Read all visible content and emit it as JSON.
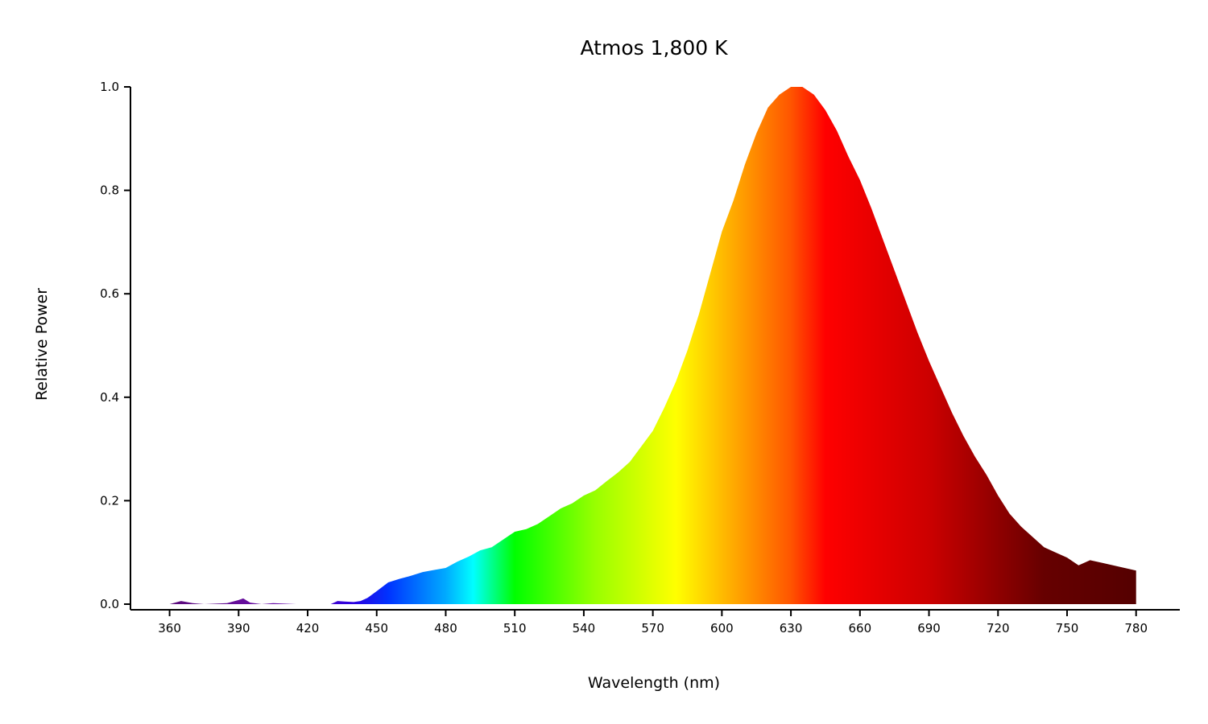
{
  "chart_data": {
    "type": "area",
    "title": "Atmos 1,800 K",
    "xlabel": "Wavelength (nm)",
    "ylabel": "Relative Power",
    "xlim": [
      343,
      799
    ],
    "ylim": [
      0,
      1.0
    ],
    "xticks": [
      360,
      390,
      420,
      450,
      480,
      510,
      540,
      570,
      600,
      630,
      660,
      690,
      720,
      750,
      780
    ],
    "yticks": [
      0.0,
      0.2,
      0.4,
      0.6,
      0.8,
      1.0
    ],
    "ytick_labels": [
      "0.0",
      "0.2",
      "0.4",
      "0.6",
      "0.8",
      "1.0"
    ],
    "grid": false,
    "fill": "visible-spectrum gradient",
    "series": [
      {
        "x": [
          360,
          365,
          370,
          375,
          380,
          385,
          390,
          392,
          395,
          400,
          405,
          410,
          415,
          420,
          425,
          430,
          433,
          436,
          440,
          443,
          446,
          450,
          455,
          460,
          465,
          470,
          475,
          480,
          485,
          490,
          495,
          500,
          505,
          510,
          515,
          520,
          525,
          530,
          535,
          540,
          545,
          550,
          555,
          560,
          565,
          570,
          575,
          580,
          585,
          590,
          595,
          600,
          605,
          610,
          615,
          620,
          625,
          630,
          635,
          640,
          645,
          650,
          655,
          660,
          665,
          670,
          675,
          680,
          685,
          690,
          695,
          700,
          705,
          710,
          715,
          720,
          725,
          730,
          735,
          740,
          745,
          750,
          755,
          760,
          765,
          770,
          775,
          780
        ],
        "y": [
          0.0,
          0.006,
          0.002,
          0.0,
          0.001,
          0.002,
          0.008,
          0.011,
          0.003,
          0.0,
          0.002,
          0.001,
          0.0,
          0.0,
          0.0,
          0.0,
          0.006,
          0.005,
          0.004,
          0.006,
          0.012,
          0.025,
          0.042,
          0.049,
          0.055,
          0.062,
          0.066,
          0.07,
          0.082,
          0.092,
          0.104,
          0.11,
          0.125,
          0.14,
          0.145,
          0.155,
          0.17,
          0.185,
          0.195,
          0.21,
          0.22,
          0.238,
          0.255,
          0.275,
          0.305,
          0.335,
          0.38,
          0.43,
          0.49,
          0.56,
          0.64,
          0.72,
          0.78,
          0.85,
          0.91,
          0.96,
          0.985,
          1.0,
          1.0,
          0.985,
          0.955,
          0.915,
          0.865,
          0.82,
          0.765,
          0.705,
          0.645,
          0.585,
          0.525,
          0.47,
          0.42,
          0.37,
          0.325,
          0.285,
          0.25,
          0.21,
          0.175,
          0.15,
          0.13,
          0.11,
          0.1,
          0.09,
          0.075,
          0.085,
          0.08,
          0.075,
          0.07,
          0.065
        ]
      }
    ]
  }
}
